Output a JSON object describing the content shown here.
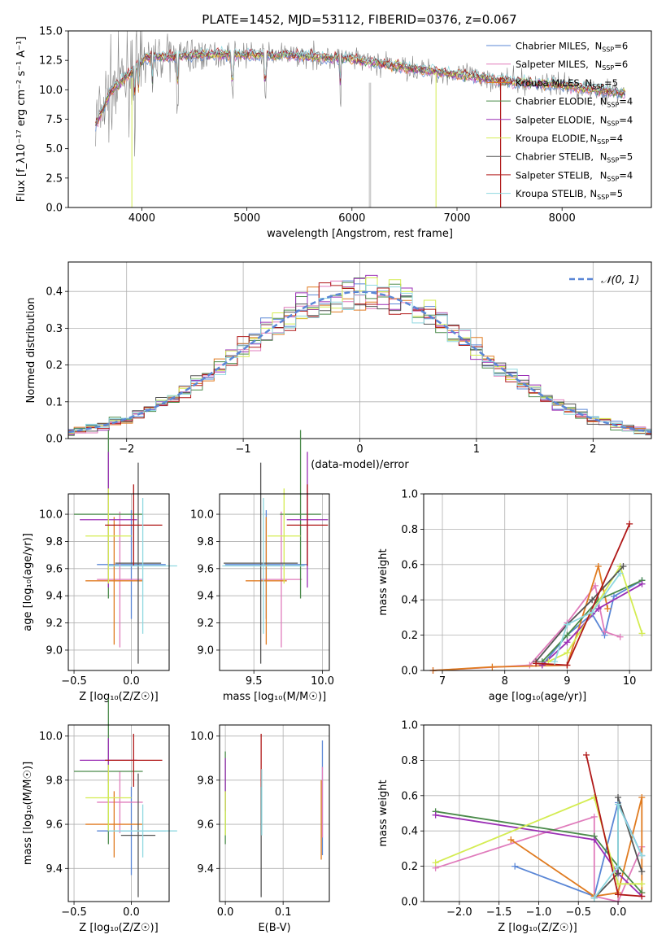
{
  "title": "PLATE=1452, MJD=53112, FIBERID=0376, z=0.067",
  "colors": {
    "Chabrier MILES": "#5b87d6",
    "Salpeter MILES": "#e07cbc",
    "Kroupa MILES": "#e07b20",
    "Chabrier ELODIE": "#4a8a4a",
    "Salpeter ELODIE": "#9b2fb5",
    "Kroupa ELODIE": "#d4ec52",
    "Chabrier STELIB": "#555555",
    "Salpeter STELIB": "#b01818",
    "Kroupa STELIB": "#8fd8e0",
    "normal": "#5b87d6",
    "data": "#808080"
  },
  "chart_data": [
    {
      "id": "spectrum",
      "type": "line",
      "xlabel": "wavelength [Angstrom, rest frame]",
      "ylabel": "Flux [f_λ10⁻¹⁷ erg cm⁻² s⁻¹ A⁻¹]",
      "xlim": [
        3300,
        8850
      ],
      "ylim": [
        0,
        15
      ],
      "xticks": [
        "4000",
        "5000",
        "6000",
        "7000",
        "8000"
      ],
      "yticks": [
        "0.0",
        "2.5",
        "5.0",
        "7.5",
        "10.0",
        "12.5",
        "15.0"
      ],
      "grid": false,
      "legend_position": "top-right",
      "data_range": [
        3560,
        8600
      ],
      "continuum": [
        [
          3560,
          7.0
        ],
        [
          3700,
          9.8
        ],
        [
          3900,
          11.5
        ],
        [
          4050,
          12.8
        ],
        [
          4300,
          12.8
        ],
        [
          4600,
          13.0
        ],
        [
          5000,
          13.0
        ],
        [
          5500,
          12.9
        ],
        [
          6000,
          12.6
        ],
        [
          6500,
          11.9
        ],
        [
          7000,
          11.3
        ],
        [
          7500,
          10.7
        ],
        [
          8000,
          10.4
        ],
        [
          8600,
          9.7
        ]
      ],
      "legend": [
        {
          "name": "Chabrier MILES",
          "nssp": "6"
        },
        {
          "name": "Salpeter MILES",
          "nssp": "6"
        },
        {
          "name": "Kroupa MILES",
          "nssp": "5"
        },
        {
          "name": "Chabrier ELODIE",
          "nssp": "4"
        },
        {
          "name": "Salpeter ELODIE",
          "nssp": "4"
        },
        {
          "name": "Kroupa ELODIE",
          "nssp": "4"
        },
        {
          "name": "Chabrier STELIB",
          "nssp": "5"
        },
        {
          "name": "Salpeter STELIB",
          "nssp": "4"
        },
        {
          "name": "Kroupa STELIB",
          "nssp": "5"
        }
      ]
    },
    {
      "id": "residuals",
      "type": "line",
      "xlabel": "(data-model)/error",
      "ylabel": "Normed distribution",
      "xlim": [
        -2.5,
        2.5
      ],
      "ylim": [
        0,
        0.48
      ],
      "xticks": [
        "−2",
        "−1",
        "0",
        "1",
        "2"
      ],
      "yticks": [
        "0.0",
        "0.1",
        "0.2",
        "0.3",
        "0.4"
      ],
      "grid": true,
      "legend_position": "top-right",
      "legend": "𝒩(0, 1)",
      "bin_width": 0.1
    },
    {
      "id": "age-vs-Z",
      "type": "scatter",
      "xlabel": "Z [log₁₀(Z/Z☉)]",
      "ylabel": "age  [log₁₀(age/yr)]",
      "xlim": [
        -0.55,
        0.33
      ],
      "ylim": [
        8.85,
        10.15
      ],
      "xticks": [
        "−0.5",
        "0.0"
      ],
      "yticks": [
        "9.0",
        "9.2",
        "9.4",
        "9.6",
        "9.8",
        "10.0"
      ],
      "grid": true,
      "points": [
        {
          "model": "Chabrier MILES",
          "x": 0.0,
          "xerr": 0.3,
          "y": 9.63,
          "yerr": 0.4
        },
        {
          "model": "Salpeter MILES",
          "x": -0.1,
          "xerr": 0.2,
          "y": 9.52,
          "yerr": 0.5
        },
        {
          "model": "Kroupa MILES",
          "x": -0.15,
          "xerr": 0.25,
          "y": 9.51,
          "yerr": 0.47
        },
        {
          "model": "Chabrier ELODIE",
          "x": -0.2,
          "xerr": 0.3,
          "y": 10.0,
          "yerr": 0.62
        },
        {
          "model": "Salpeter ELODIE",
          "x": -0.2,
          "xerr": 0.25,
          "y": 9.96,
          "yerr": 0.5
        },
        {
          "model": "Kroupa ELODIE",
          "x": -0.2,
          "xerr": 0.2,
          "y": 9.84,
          "yerr": 0.35
        },
        {
          "model": "Chabrier STELIB",
          "x": 0.06,
          "xerr": 0.2,
          "y": 9.64,
          "yerr": 0.74
        },
        {
          "model": "Salpeter STELIB",
          "x": 0.02,
          "xerr": 0.25,
          "y": 9.92,
          "yerr": 0.3
        },
        {
          "model": "Kroupa STELIB",
          "x": 0.1,
          "xerr": 0.3,
          "y": 9.62,
          "yerr": 0.5
        }
      ]
    },
    {
      "id": "age-vs-mass",
      "type": "scatter",
      "xlabel": "mass [log₁₀(M/M☉)]",
      "xlim": [
        9.25,
        10.05
      ],
      "ylim": [
        8.85,
        10.15
      ],
      "xticks": [
        "9.5",
        "10.0"
      ],
      "yticks": [
        "9.0",
        "9.2",
        "9.4",
        "9.6",
        "9.8",
        "10.0"
      ],
      "grid": true,
      "points": [
        {
          "model": "Chabrier MILES",
          "x": 9.59,
          "xerr": 0.3,
          "y": 9.63,
          "yerr": 0.4
        },
        {
          "model": "Salpeter MILES",
          "x": 9.7,
          "xerr": 0.15,
          "y": 9.52,
          "yerr": 0.5
        },
        {
          "model": "Kroupa MILES",
          "x": 9.59,
          "xerr": 0.15,
          "y": 9.51,
          "yerr": 0.47
        },
        {
          "model": "Chabrier ELODIE",
          "x": 9.84,
          "xerr": 0.15,
          "y": 10.0,
          "yerr": 0.62
        },
        {
          "model": "Salpeter ELODIE",
          "x": 9.89,
          "xerr": 0.15,
          "y": 9.96,
          "yerr": 0.5
        },
        {
          "model": "Kroupa ELODIE",
          "x": 9.72,
          "xerr": 0.12,
          "y": 9.84,
          "yerr": 0.35
        },
        {
          "model": "Chabrier STELIB",
          "x": 9.55,
          "xerr": 0.27,
          "y": 9.64,
          "yerr": 0.74
        },
        {
          "model": "Salpeter STELIB",
          "x": 9.89,
          "xerr": 0.15,
          "y": 9.92,
          "yerr": 0.3
        },
        {
          "model": "Kroupa STELIB",
          "x": 9.57,
          "xerr": 0.3,
          "y": 9.62,
          "yerr": 0.5
        }
      ]
    },
    {
      "id": "weight-vs-age",
      "type": "line",
      "xlabel": "age  [log₁₀(age/yr)]",
      "ylabel": "mass weight",
      "xlim": [
        6.7,
        10.35
      ],
      "ylim": [
        0,
        1
      ],
      "xticks": [
        "7",
        "8",
        "9",
        "10"
      ],
      "yticks": [
        "0.0",
        "0.2",
        "0.4",
        "0.6",
        "0.8",
        "1.0"
      ],
      "grid": true,
      "series": [
        {
          "model": "Chabrier MILES",
          "x": [
            8.6,
            9.0,
            9.4,
            9.6,
            9.75,
            10.2
          ],
          "y": [
            0.03,
            0.2,
            0.32,
            0.2,
            0.42,
            0.51
          ]
        },
        {
          "model": "Salpeter MILES",
          "x": [
            6.85,
            8.4,
            9.0,
            9.45,
            9.6,
            9.85
          ],
          "y": [
            0.0,
            0.03,
            0.27,
            0.48,
            0.22,
            0.19
          ]
        },
        {
          "model": "Kroupa MILES",
          "x": [
            6.85,
            7.8,
            9.0,
            9.5,
            9.65
          ],
          "y": [
            0.0,
            0.02,
            0.03,
            0.59,
            0.35
          ]
        },
        {
          "model": "Chabrier ELODIE",
          "x": [
            8.6,
            9.0,
            9.5,
            10.2
          ],
          "y": [
            0.05,
            0.2,
            0.4,
            0.51
          ]
        },
        {
          "model": "Salpeter ELODIE",
          "x": [
            8.6,
            9.0,
            9.5,
            10.2
          ],
          "y": [
            0.03,
            0.16,
            0.35,
            0.49
          ]
        },
        {
          "model": "Kroupa ELODIE",
          "x": [
            8.7,
            9.0,
            9.85,
            10.2
          ],
          "y": [
            0.05,
            0.1,
            0.59,
            0.21
          ]
        },
        {
          "model": "Chabrier STELIB",
          "x": [
            8.5,
            9.0,
            9.4,
            9.9
          ],
          "y": [
            0.05,
            0.26,
            0.4,
            0.59
          ]
        },
        {
          "model": "Salpeter STELIB",
          "x": [
            8.5,
            9.0,
            10.0
          ],
          "y": [
            0.04,
            0.03,
            0.83
          ]
        },
        {
          "model": "Kroupa STELIB",
          "x": [
            8.8,
            9.0,
            9.4,
            9.85
          ],
          "y": [
            0.05,
            0.26,
            0.33,
            0.55
          ]
        }
      ]
    },
    {
      "id": "mass-vs-Z",
      "type": "scatter",
      "xlabel": "Z [log₁₀(Z/Z☉)]",
      "ylabel": "mass [log₁₀(M/M☉)]",
      "xlim": [
        -0.55,
        0.33
      ],
      "ylim": [
        9.25,
        10.05
      ],
      "xticks": [
        "−0.5",
        "0.0"
      ],
      "yticks": [
        "9.4",
        "9.6",
        "9.8",
        "10.0"
      ],
      "grid": true,
      "points": [
        {
          "model": "Chabrier MILES",
          "x": 0.0,
          "xerr": 0.3,
          "y": 9.57,
          "yerr": 0.2
        },
        {
          "model": "Salpeter MILES",
          "x": -0.1,
          "xerr": 0.2,
          "y": 9.7,
          "yerr": 0.14
        },
        {
          "model": "Kroupa MILES",
          "x": -0.15,
          "xerr": 0.25,
          "y": 9.6,
          "yerr": 0.15
        },
        {
          "model": "Chabrier ELODIE",
          "x": -0.2,
          "xerr": 0.3,
          "y": 9.84,
          "yerr": 0.33
        },
        {
          "model": "Salpeter ELODIE",
          "x": -0.2,
          "xerr": 0.25,
          "y": 9.89,
          "yerr": 0.1
        },
        {
          "model": "Kroupa ELODIE",
          "x": -0.2,
          "xerr": 0.2,
          "y": 9.72,
          "yerr": 0.15
        },
        {
          "model": "Chabrier STELIB",
          "x": 0.06,
          "xerr": 0.15,
          "y": 9.55,
          "yerr": 0.28
        },
        {
          "model": "Salpeter STELIB",
          "x": 0.02,
          "xerr": 0.25,
          "y": 9.89,
          "yerr": 0.12
        },
        {
          "model": "Kroupa STELIB",
          "x": 0.1,
          "xerr": 0.3,
          "y": 9.57,
          "yerr": 0.12
        }
      ]
    },
    {
      "id": "mass-vs-ebv",
      "type": "scatter",
      "xlabel": "E(B-V)",
      "xlim": [
        -0.01,
        0.18
      ],
      "ylim": [
        9.25,
        10.05
      ],
      "xticks": [
        "0.0",
        "0.1"
      ],
      "yticks": [
        "9.4",
        "9.6",
        "9.8",
        "10.0"
      ],
      "grid": true,
      "points": [
        {
          "model": "Chabrier MILES",
          "x": 0.168,
          "y": 9.72,
          "yerr": 0.26
        },
        {
          "model": "Salpeter MILES",
          "x": 0.168,
          "y": 9.7,
          "yerr": 0.16
        },
        {
          "model": "Kroupa MILES",
          "x": 0.166,
          "y": 9.62,
          "yerr": 0.18
        },
        {
          "model": "Chabrier ELODIE",
          "x": 0.0,
          "y": 9.72,
          "yerr": 0.21
        },
        {
          "model": "Salpeter ELODIE",
          "x": 0.0,
          "y": 9.78,
          "yerr": 0.12
        },
        {
          "model": "Kroupa ELODIE",
          "x": 0.0,
          "y": 9.65,
          "yerr": 0.1
        },
        {
          "model": "Chabrier STELIB",
          "x": 0.062,
          "y": 9.55,
          "yerr": 0.28
        },
        {
          "model": "Salpeter STELIB",
          "x": 0.062,
          "y": 9.89,
          "yerr": 0.12
        },
        {
          "model": "Kroupa STELIB",
          "x": 0.063,
          "y": 9.7,
          "yerr": 0.15
        }
      ]
    },
    {
      "id": "weight-vs-Z",
      "type": "line",
      "xlabel": "Z [log₁₀(Z/Z☉)]",
      "ylabel": "mass weight",
      "xlim": [
        -2.45,
        0.42
      ],
      "ylim": [
        0,
        1
      ],
      "xticks": [
        "−2.0",
        "−1.5",
        "−1.0",
        "−0.5",
        "0.0"
      ],
      "yticks": [
        "0.0",
        "0.2",
        "0.4",
        "0.6",
        "0.8",
        "1.0"
      ],
      "grid": true,
      "series": [
        {
          "model": "Chabrier MILES",
          "x": [
            -1.3,
            -0.3,
            0.0,
            0.3
          ],
          "y": [
            0.2,
            0.03,
            0.56,
            0.26
          ]
        },
        {
          "model": "Salpeter MILES",
          "x": [
            -2.3,
            -0.3,
            -0.3,
            0.0,
            0.3
          ],
          "y": [
            0.19,
            0.48,
            0.03,
            0.0,
            0.31
          ]
        },
        {
          "model": "Kroupa MILES",
          "x": [
            -1.35,
            -0.3,
            0.0,
            0.3,
            0.3
          ],
          "y": [
            0.35,
            0.03,
            0.05,
            0.59,
            0.05
          ]
        },
        {
          "model": "Chabrier ELODIE",
          "x": [
            -2.3,
            -0.3,
            0.0,
            0.3
          ],
          "y": [
            0.51,
            0.37,
            0.2,
            0.05
          ]
        },
        {
          "model": "Salpeter ELODIE",
          "x": [
            -2.3,
            -0.3,
            0.0,
            0.3
          ],
          "y": [
            0.49,
            0.35,
            0.16,
            0.03
          ]
        },
        {
          "model": "Kroupa ELODIE",
          "x": [
            -2.3,
            -0.3,
            0.0,
            0.3
          ],
          "y": [
            0.22,
            0.59,
            0.1,
            0.1
          ]
        },
        {
          "model": "Chabrier STELIB",
          "x": [
            -0.3,
            0.0,
            0.0,
            0.3
          ],
          "y": [
            0.02,
            0.16,
            0.59,
            0.17
          ]
        },
        {
          "model": "Salpeter STELIB",
          "x": [
            -0.4,
            0.0,
            0.3
          ],
          "y": [
            0.83,
            0.04,
            0.03
          ]
        },
        {
          "model": "Kroupa STELIB",
          "x": [
            -0.3,
            0.0,
            0.0,
            0.3
          ],
          "y": [
            0.02,
            0.2,
            0.55,
            0.26
          ]
        }
      ]
    }
  ]
}
